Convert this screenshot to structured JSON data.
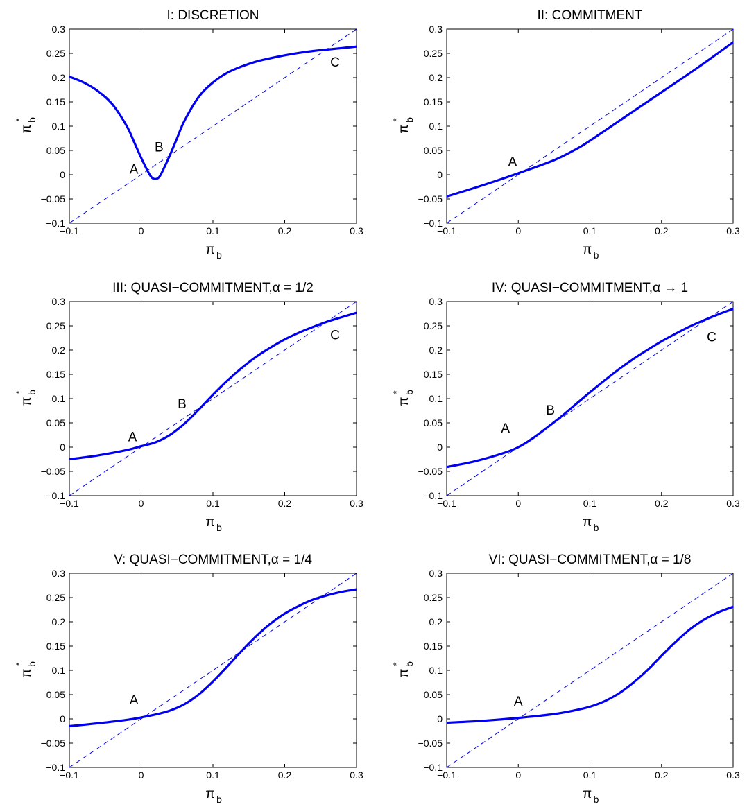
{
  "figure": {
    "background": "#ffffff",
    "curve_color": "#0000ee",
    "diagonal_color": "#0000ee"
  },
  "chart_data": [
    {
      "type": "line",
      "title": "I: DISCRETION",
      "xlabel": "π_b",
      "ylabel": "π*_b",
      "xlim": [
        -0.1,
        0.3
      ],
      "ylim": [
        -0.1,
        0.3
      ],
      "xticks": [
        "−0.1",
        "0",
        "0.1",
        "0.2",
        "0.3"
      ],
      "yticks": [
        "0.3",
        "0.25",
        "0.2",
        "0.15",
        "0.1",
        "0.05",
        "0",
        "−0.05",
        "−0.1"
      ],
      "grid": false,
      "series": [
        {
          "style": "solid",
          "x": [
            -0.1,
            -0.08,
            -0.06,
            -0.04,
            -0.02,
            -0.01,
            0.0,
            0.01,
            0.015,
            0.02,
            0.025,
            0.03,
            0.04,
            0.05,
            0.06,
            0.08,
            0.1,
            0.12,
            0.14,
            0.16,
            0.18,
            0.2,
            0.22,
            0.24,
            0.26,
            0.28,
            0.3
          ],
          "y": [
            0.202,
            0.19,
            0.172,
            0.145,
            0.1,
            0.068,
            0.035,
            0.005,
            -0.006,
            -0.009,
            -0.005,
            0.008,
            0.04,
            0.075,
            0.11,
            0.16,
            0.19,
            0.21,
            0.223,
            0.233,
            0.24,
            0.246,
            0.251,
            0.255,
            0.258,
            0.261,
            0.264
          ]
        },
        {
          "style": "dashed",
          "x": [
            -0.1,
            0.3
          ],
          "y": [
            -0.1,
            0.3
          ]
        }
      ],
      "annotations": [
        {
          "text": "A",
          "x": -0.01,
          "y": 0.012
        },
        {
          "text": "B",
          "x": 0.025,
          "y": 0.058
        },
        {
          "text": "C",
          "x": 0.27,
          "y": 0.233
        }
      ]
    },
    {
      "type": "line",
      "title": "II: COMMITMENT",
      "xlabel": "π_b",
      "ylabel": "π*_b",
      "xlim": [
        -0.1,
        0.3
      ],
      "ylim": [
        -0.1,
        0.3
      ],
      "xticks": [
        "−0.1",
        "0",
        "0.1",
        "0.2",
        "0.3"
      ],
      "yticks": [
        "0.3",
        "0.25",
        "0.2",
        "0.15",
        "0.1",
        "0.05",
        "0",
        "−0.05",
        "−0.1"
      ],
      "grid": false,
      "series": [
        {
          "style": "solid",
          "x": [
            -0.1,
            -0.05,
            0.0,
            0.05,
            0.08,
            0.1,
            0.15,
            0.2,
            0.25,
            0.3
          ],
          "y": [
            -0.045,
            -0.022,
            0.003,
            0.03,
            0.052,
            0.07,
            0.12,
            0.17,
            0.22,
            0.273
          ]
        },
        {
          "style": "dashed",
          "x": [
            -0.1,
            0.3
          ],
          "y": [
            -0.1,
            0.3
          ]
        }
      ],
      "annotations": [
        {
          "text": "A",
          "x": -0.008,
          "y": 0.028
        }
      ]
    },
    {
      "type": "line",
      "title": "III: QUASI−COMMITMENT,α = 1/2",
      "xlabel": "π_b",
      "ylabel": "π*_b",
      "xlim": [
        -0.1,
        0.3
      ],
      "ylim": [
        -0.1,
        0.3
      ],
      "xticks": [
        "−0.1",
        "0",
        "0.1",
        "0.2",
        "0.3"
      ],
      "yticks": [
        "0.3",
        "0.25",
        "0.2",
        "0.15",
        "0.1",
        "0.05",
        "0",
        "−0.05",
        "−0.1"
      ],
      "grid": false,
      "series": [
        {
          "style": "solid",
          "x": [
            -0.1,
            -0.06,
            -0.02,
            0.0,
            0.02,
            0.04,
            0.06,
            0.08,
            0.1,
            0.12,
            0.14,
            0.16,
            0.18,
            0.2,
            0.22,
            0.24,
            0.26,
            0.28,
            0.3
          ],
          "y": [
            -0.025,
            -0.017,
            -0.006,
            0.002,
            0.01,
            0.025,
            0.048,
            0.077,
            0.108,
            0.137,
            0.163,
            0.186,
            0.205,
            0.222,
            0.236,
            0.248,
            0.259,
            0.268,
            0.277
          ]
        },
        {
          "style": "dashed",
          "x": [
            -0.1,
            0.3
          ],
          "y": [
            -0.1,
            0.3
          ]
        }
      ],
      "annotations": [
        {
          "text": "A",
          "x": -0.012,
          "y": 0.022
        },
        {
          "text": "B",
          "x": 0.057,
          "y": 0.09
        },
        {
          "text": "C",
          "x": 0.27,
          "y": 0.232
        }
      ]
    },
    {
      "type": "line",
      "title": "IV: QUASI−COMMITMENT,α → 1",
      "xlabel": "π_b",
      "ylabel": "π*_b",
      "xlim": [
        -0.1,
        0.3
      ],
      "ylim": [
        -0.1,
        0.3
      ],
      "xticks": [
        "−0.1",
        "0",
        "0.1",
        "0.2",
        "0.3"
      ],
      "yticks": [
        "0.3",
        "0.25",
        "0.2",
        "0.15",
        "0.1",
        "0.05",
        "0",
        "−0.05",
        "−0.1"
      ],
      "grid": false,
      "series": [
        {
          "style": "solid",
          "x": [
            -0.1,
            -0.06,
            -0.02,
            0.0,
            0.02,
            0.04,
            0.06,
            0.08,
            0.1,
            0.12,
            0.14,
            0.16,
            0.18,
            0.2,
            0.22,
            0.24,
            0.26,
            0.28,
            0.3
          ],
          "y": [
            -0.041,
            -0.029,
            -0.012,
            0.0,
            0.018,
            0.04,
            0.063,
            0.088,
            0.113,
            0.137,
            0.16,
            0.181,
            0.2,
            0.218,
            0.234,
            0.249,
            0.262,
            0.274,
            0.285
          ]
        },
        {
          "style": "dashed",
          "x": [
            -0.1,
            0.3
          ],
          "y": [
            -0.1,
            0.3
          ]
        }
      ],
      "annotations": [
        {
          "text": "A",
          "x": -0.018,
          "y": 0.04
        },
        {
          "text": "B",
          "x": 0.045,
          "y": 0.077
        },
        {
          "text": "C",
          "x": 0.27,
          "y": 0.228
        }
      ]
    },
    {
      "type": "line",
      "title": "V: QUASI−COMMITMENT,α = 1/4",
      "xlabel": "π_b",
      "ylabel": "π*_b",
      "xlim": [
        -0.1,
        0.3
      ],
      "ylim": [
        -0.1,
        0.3
      ],
      "xticks": [
        "−0.1",
        "0",
        "0.1",
        "0.2",
        "0.3"
      ],
      "yticks": [
        "0.3",
        "0.25",
        "0.2",
        "0.15",
        "0.1",
        "0.05",
        "0",
        "−0.05",
        "−0.1"
      ],
      "grid": false,
      "series": [
        {
          "style": "solid",
          "x": [
            -0.1,
            -0.06,
            -0.02,
            0.0,
            0.02,
            0.04,
            0.06,
            0.08,
            0.1,
            0.12,
            0.14,
            0.16,
            0.18,
            0.2,
            0.22,
            0.24,
            0.26,
            0.28,
            0.3
          ],
          "y": [
            -0.015,
            -0.009,
            -0.002,
            0.003,
            0.009,
            0.017,
            0.03,
            0.05,
            0.077,
            0.108,
            0.14,
            0.17,
            0.196,
            0.217,
            0.233,
            0.246,
            0.255,
            0.262,
            0.267
          ]
        },
        {
          "style": "dashed",
          "x": [
            -0.1,
            0.3
          ],
          "y": [
            -0.1,
            0.3
          ]
        }
      ],
      "annotations": [
        {
          "text": "A",
          "x": -0.01,
          "y": 0.04
        }
      ]
    },
    {
      "type": "line",
      "title": "VI: QUASI−COMMITMENT,α = 1/8",
      "xlabel": "π_b",
      "ylabel": "π*_b",
      "xlim": [
        -0.1,
        0.3
      ],
      "ylim": [
        -0.1,
        0.3
      ],
      "xticks": [
        "−0.1",
        "0",
        "0.1",
        "0.2",
        "0.3"
      ],
      "yticks": [
        "0.3",
        "0.25",
        "0.2",
        "0.15",
        "0.1",
        "0.05",
        "0",
        "−0.05",
        "−0.1"
      ],
      "grid": false,
      "series": [
        {
          "style": "solid",
          "x": [
            -0.1,
            -0.05,
            0.0,
            0.05,
            0.08,
            0.1,
            0.12,
            0.14,
            0.16,
            0.18,
            0.2,
            0.22,
            0.24,
            0.26,
            0.28,
            0.3
          ],
          "y": [
            -0.008,
            -0.004,
            0.002,
            0.01,
            0.018,
            0.025,
            0.036,
            0.052,
            0.074,
            0.1,
            0.13,
            0.159,
            0.185,
            0.205,
            0.22,
            0.231
          ]
        },
        {
          "style": "dashed",
          "x": [
            -0.1,
            0.3
          ],
          "y": [
            -0.1,
            0.3
          ]
        }
      ],
      "annotations": [
        {
          "text": "A",
          "x": 0.0,
          "y": 0.037
        }
      ]
    }
  ]
}
